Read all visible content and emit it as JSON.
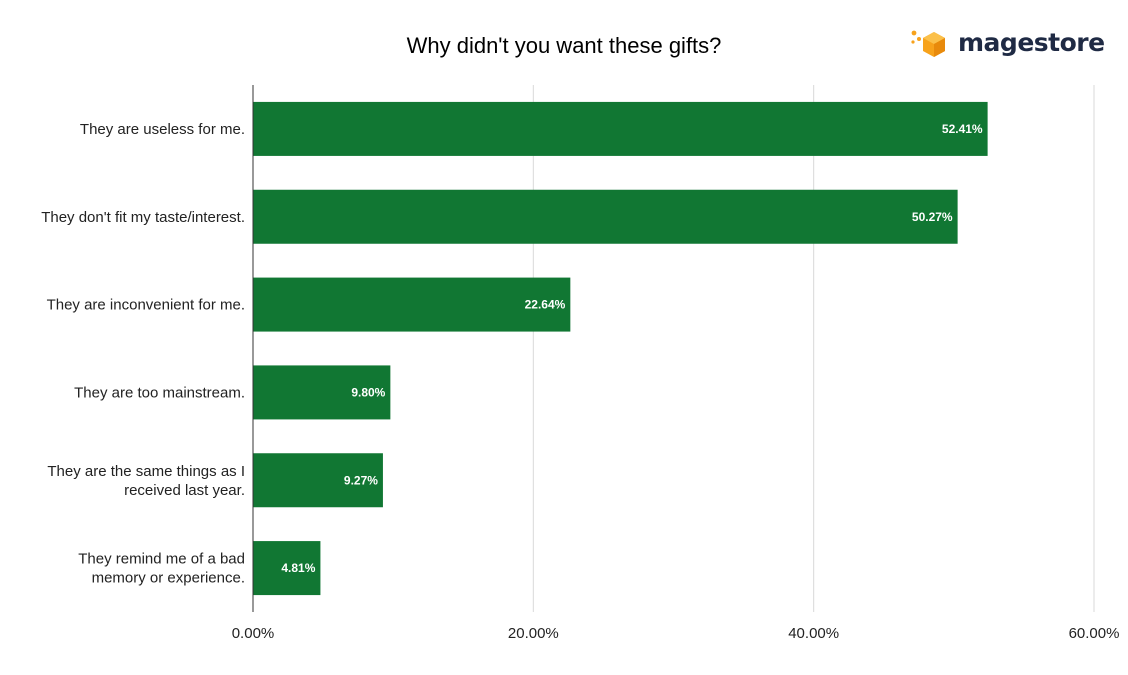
{
  "colors": {
    "bar": "#117733",
    "grid": "#d9d9d9",
    "axis": "#333333",
    "logo_orange": "#f7a21b",
    "logo_text": "#1f2a44"
  },
  "logo": {
    "text": "magestore",
    "icon": "hexagon-cube-icon"
  },
  "chart_data": {
    "type": "bar",
    "orientation": "horizontal",
    "title": "Why didn't you want these gifts?",
    "categories": [
      [
        "They are useless for me."
      ],
      [
        "They don't fit my taste/interest."
      ],
      [
        "They are inconvenient for me."
      ],
      [
        "They are too mainstream."
      ],
      [
        "They are the same things as I",
        "received last year."
      ],
      [
        "They remind me of a bad",
        "memory or experience."
      ]
    ],
    "values": [
      52.41,
      50.27,
      22.64,
      9.8,
      9.27,
      4.81
    ],
    "data_labels": [
      "52.41%",
      "50.27%",
      "22.64%",
      "9.80%",
      "9.27%",
      "4.81%"
    ],
    "xlim": [
      0,
      60
    ],
    "ticks": [
      0,
      20,
      40,
      60
    ],
    "tick_labels": [
      "0.00%",
      "20.00%",
      "40.00%",
      "60.00%"
    ],
    "xlabel": "",
    "ylabel": "",
    "grid": true,
    "legend": "none"
  }
}
